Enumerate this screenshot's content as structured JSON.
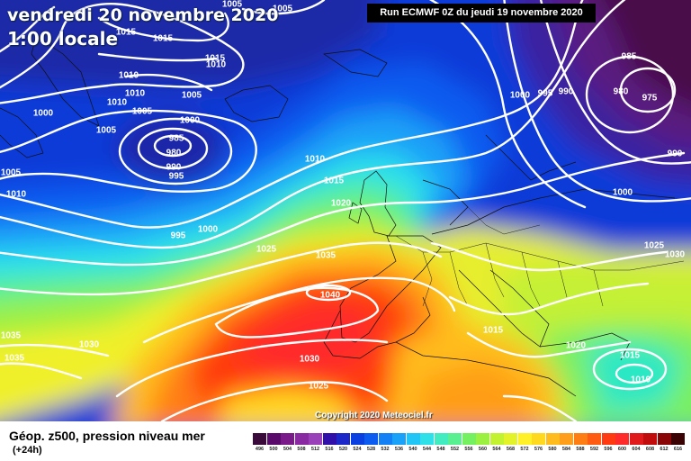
{
  "header": {
    "date_line": "vendredi 20 novembre 2020",
    "time_line": "1:00 locale",
    "run_label": "Run ECMWF 0Z du jeudi 19 novembre 2020"
  },
  "footer": {
    "copyright": "Copyright 2020 Meteociel.fr",
    "legend_title": "Géop. z500, pression niveau mer",
    "legend_sub": "(+24h)"
  },
  "scale": {
    "ticks": [
      "496",
      "500",
      "504",
      "508",
      "512",
      "516",
      "520",
      "524",
      "528",
      "532",
      "536",
      "540",
      "544",
      "548",
      "552",
      "556",
      "560",
      "564",
      "568",
      "572",
      "576",
      "580",
      "584",
      "588",
      "592",
      "596",
      "600",
      "604",
      "608",
      "612",
      "616"
    ],
    "colors": [
      "#3a0a3a",
      "#5a0a6a",
      "#7a1a8a",
      "#8a2aa2",
      "#9a40b8",
      "#3010a8",
      "#1c28c8",
      "#0b40e0",
      "#0c5cf0",
      "#1480f6",
      "#1aa2f8",
      "#22c6f6",
      "#30e0e8",
      "#40ecc0",
      "#58f090",
      "#74f060",
      "#9cf040",
      "#c2f230",
      "#e4f22a",
      "#fff028",
      "#ffd820",
      "#ffbc1c",
      "#ff9e18",
      "#ff7e14",
      "#ff5c12",
      "#ff3a10",
      "#ff2a2a",
      "#e01a1a",
      "#c00c0c",
      "#8a0606",
      "#3a0202"
    ]
  },
  "isobar_labels": [
    {
      "text": "1005"
    },
    {
      "text": "1015"
    },
    {
      "text": "1015"
    },
    {
      "text": "1005"
    },
    {
      "text": "1010"
    },
    {
      "text": "1015"
    },
    {
      "text": "1010"
    },
    {
      "text": "1010"
    },
    {
      "text": "1005"
    },
    {
      "text": "1010"
    },
    {
      "text": "1005"
    },
    {
      "text": "1000"
    },
    {
      "text": "1000"
    },
    {
      "text": "985"
    },
    {
      "text": "980"
    },
    {
      "text": "990"
    },
    {
      "text": "995"
    },
    {
      "text": "1005"
    },
    {
      "text": "1005"
    },
    {
      "text": "1010"
    },
    {
      "text": "995"
    },
    {
      "text": "1000"
    },
    {
      "text": "1025"
    },
    {
      "text": "1035"
    },
    {
      "text": "1040"
    },
    {
      "text": "1020"
    },
    {
      "text": "1015"
    },
    {
      "text": "1010"
    },
    {
      "text": "1000"
    },
    {
      "text": "995"
    },
    {
      "text": "990"
    },
    {
      "text": "985"
    },
    {
      "text": "980"
    },
    {
      "text": "975"
    },
    {
      "text": "990"
    },
    {
      "text": "1000"
    },
    {
      "text": "1025"
    },
    {
      "text": "1030"
    },
    {
      "text": "1015"
    },
    {
      "text": "1020"
    },
    {
      "text": "1015"
    },
    {
      "text": "1010"
    },
    {
      "text": "1035"
    },
    {
      "text": "1035"
    },
    {
      "text": "1030"
    },
    {
      "text": "1030"
    },
    {
      "text": "1025"
    }
  ]
}
